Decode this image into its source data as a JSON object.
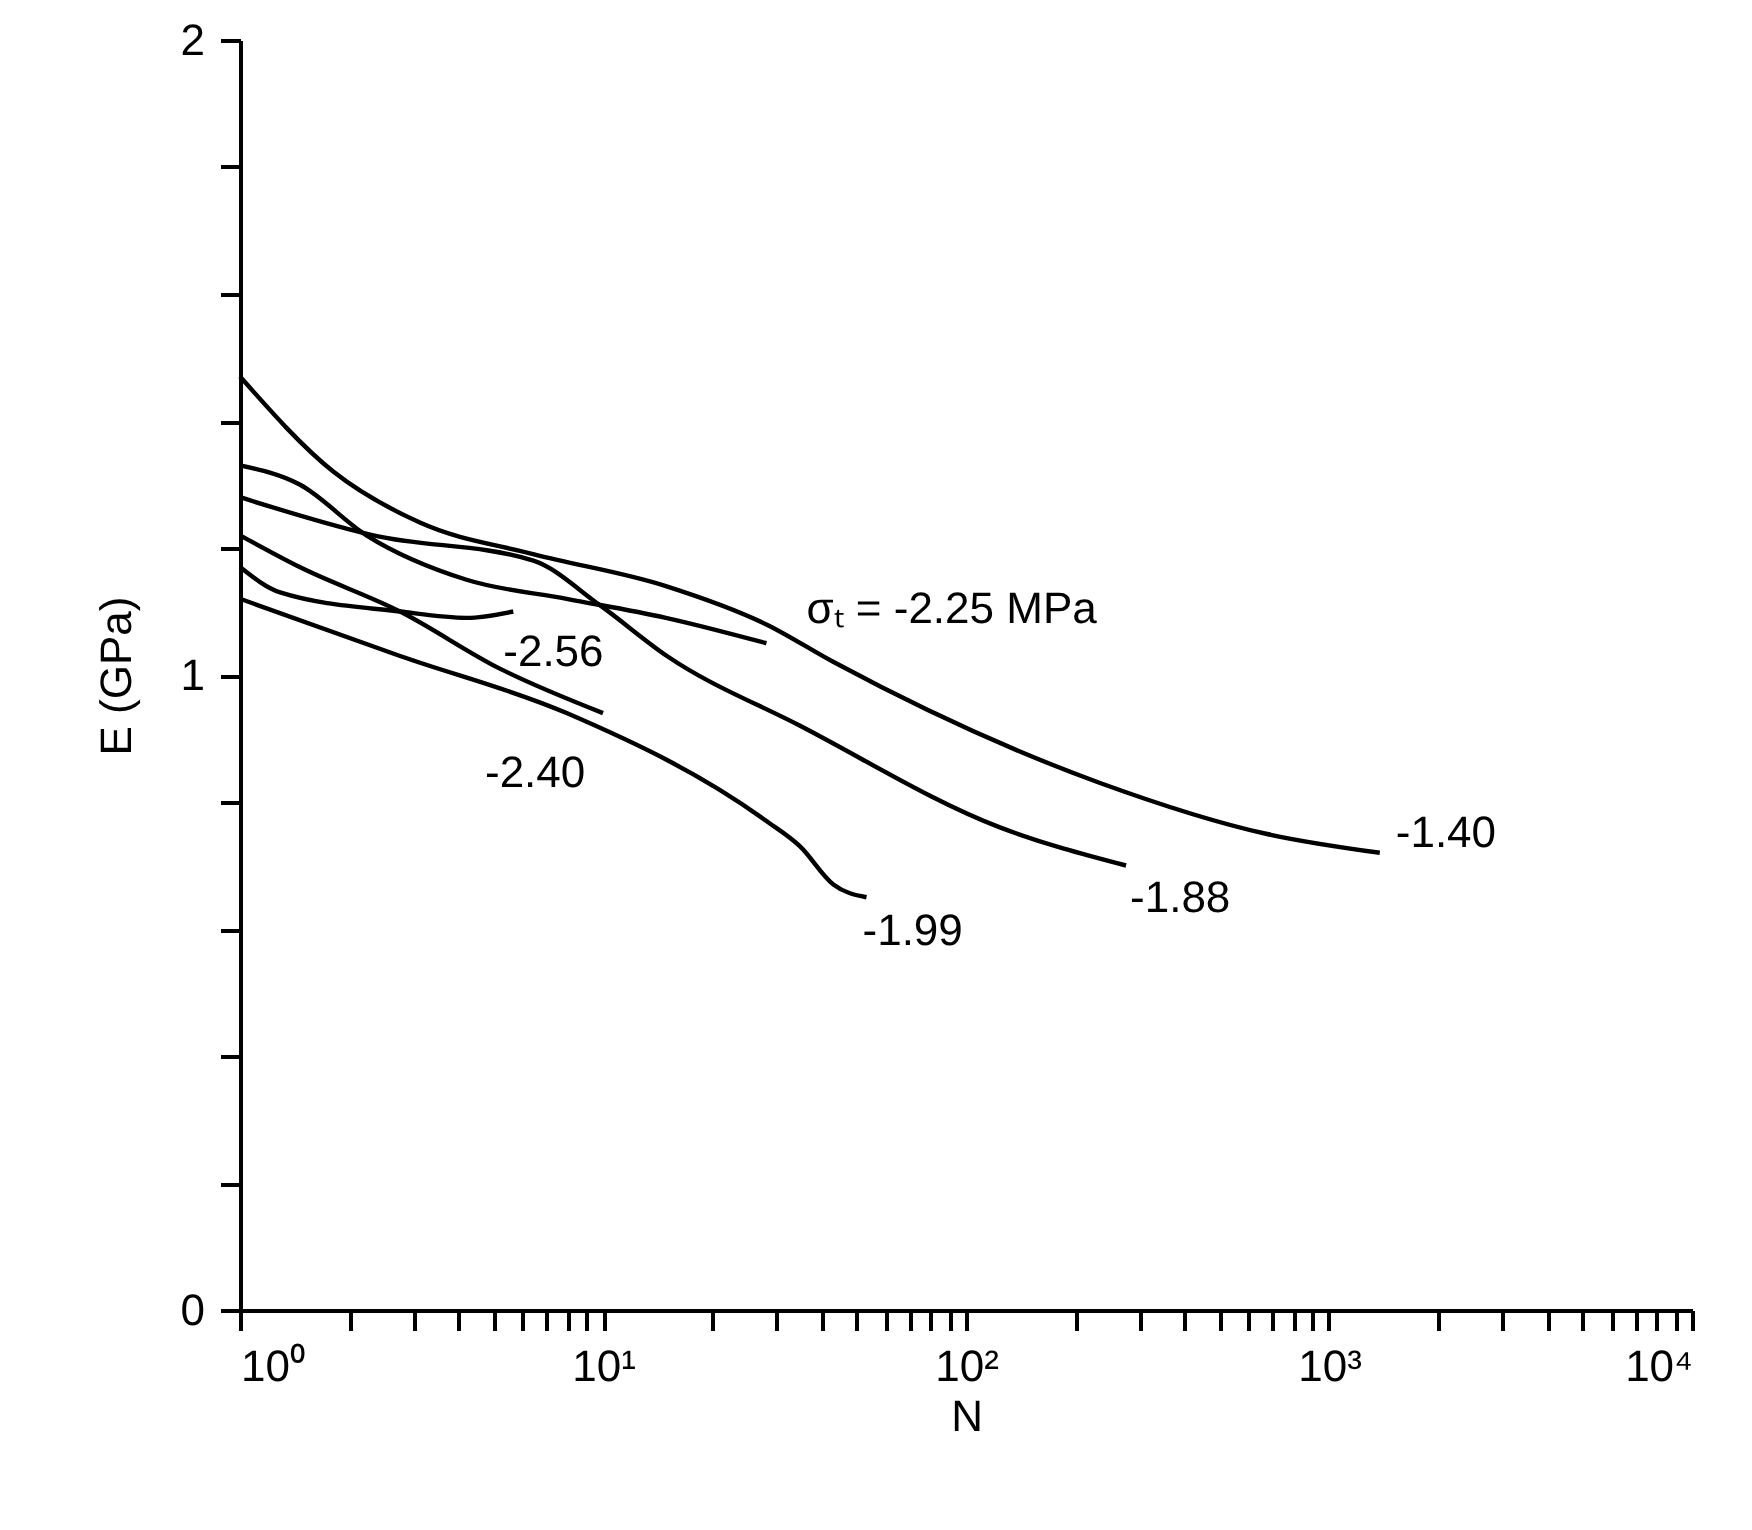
{
  "chart_data": {
    "type": "line",
    "xlabel": "N",
    "ylabel": "E (GPa)",
    "log": "x",
    "xlim": [
      1,
      10000
    ],
    "ylim": [
      0,
      2
    ],
    "xticks": [
      {
        "value": 1,
        "label": "10⁰"
      },
      {
        "value": 2,
        "label": null
      },
      {
        "value": 3,
        "label": null
      },
      {
        "value": 4,
        "label": null
      },
      {
        "value": 5,
        "label": null
      },
      {
        "value": 6,
        "label": null
      },
      {
        "value": 7,
        "label": null
      },
      {
        "value": 8,
        "label": null
      },
      {
        "value": 9,
        "label": null
      },
      {
        "value": 10,
        "label": "10¹"
      },
      {
        "value": 20,
        "label": null
      },
      {
        "value": 30,
        "label": null
      },
      {
        "value": 40,
        "label": null
      },
      {
        "value": 50,
        "label": null
      },
      {
        "value": 60,
        "label": null
      },
      {
        "value": 70,
        "label": null
      },
      {
        "value": 80,
        "label": null
      },
      {
        "value": 90,
        "label": null
      },
      {
        "value": 100,
        "label": "10²"
      },
      {
        "value": 200,
        "label": null
      },
      {
        "value": 300,
        "label": null
      },
      {
        "value": 400,
        "label": null
      },
      {
        "value": 500,
        "label": null
      },
      {
        "value": 600,
        "label": null
      },
      {
        "value": 700,
        "label": null
      },
      {
        "value": 800,
        "label": null
      },
      {
        "value": 900,
        "label": null
      },
      {
        "value": 1000,
        "label": "10³"
      },
      {
        "value": 2000,
        "label": null
      },
      {
        "value": 3000,
        "label": null
      },
      {
        "value": 4000,
        "label": null
      },
      {
        "value": 5000,
        "label": null
      },
      {
        "value": 6000,
        "label": null
      },
      {
        "value": 7000,
        "label": null
      },
      {
        "value": 8000,
        "label": null
      },
      {
        "value": 9000,
        "label": null
      },
      {
        "value": 10000,
        "label": "10⁴"
      }
    ],
    "yticks": [
      0,
      {
        "value": 0.2,
        "label": null
      },
      {
        "value": 0.4,
        "label": null
      },
      {
        "value": 0.6,
        "label": null
      },
      {
        "value": 0.8,
        "label": null
      },
      1,
      {
        "value": 1.2,
        "label": null
      },
      {
        "value": 1.4,
        "label": null
      },
      {
        "value": 1.6,
        "label": null
      },
      {
        "value": 1.8,
        "label": null
      },
      2
    ],
    "series": [
      {
        "name": "-1.40",
        "color": "#000000",
        "x": [
          1,
          1.81,
          3.13,
          6.46,
          14.9,
          28.1,
          43.3,
          234,
          670,
          1380
        ],
        "values": [
          1.47,
          1.32,
          1.24,
          1.19,
          1.14,
          1.08,
          1.02,
          0.83,
          0.75,
          0.72
        ]
      },
      {
        "name": "-1.88",
        "color": "#000000",
        "x": [
          1,
          2.33,
          6.43,
          9.8,
          15.0,
          34.9,
          124,
          276
        ],
        "values": [
          1.28,
          1.22,
          1.18,
          1.11,
          1.03,
          0.92,
          0.76,
          0.7
        ]
      },
      {
        "name": "-1.99",
        "color": "#000000",
        "x": [
          1,
          2.76,
          7.94,
          28.2,
          34.9,
          43.1,
          53.2
        ],
        "values": [
          1.12,
          1.03,
          0.94,
          0.77,
          0.73,
          0.67,
          0.65
        ]
      },
      {
        "name": "σₜ = -2.25 MPa",
        "color": "#000000",
        "x": [
          1,
          1.46,
          2.23,
          4.21,
          7.94,
          14.9,
          28.2
        ],
        "values": [
          1.33,
          1.3,
          1.22,
          1.15,
          1.12,
          1.09,
          1.05
        ]
      },
      {
        "name": "-2.56",
        "color": "#000000",
        "x": [
          1,
          1.29,
          2.76,
          4.21,
          5.66
        ],
        "values": [
          1.17,
          1.13,
          1.1,
          1.09,
          1.1
        ]
      },
      {
        "name": "-2.40",
        "color": "#000000",
        "x": [
          1,
          1.46,
          2.76,
          5.2,
          10.0
        ],
        "values": [
          1.22,
          1.17,
          1.1,
          1.01,
          0.94
        ]
      }
    ]
  }
}
